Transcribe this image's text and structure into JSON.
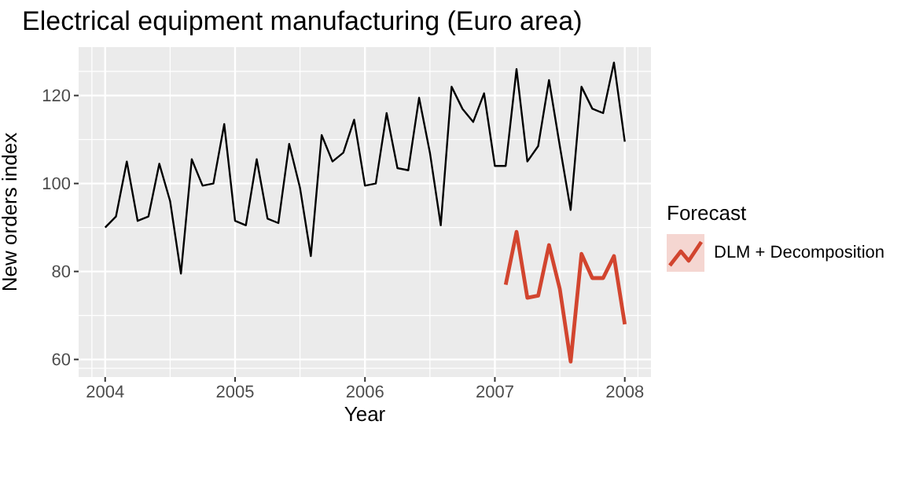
{
  "chart_data": {
    "type": "line",
    "title": "Electrical equipment manufacturing (Euro area)",
    "xlabel": "Year",
    "ylabel": "New orders index",
    "legend_title": "Forecast",
    "legend": "right",
    "grid": true,
    "xlim": [
      "2003-10-18",
      "2008-03-14"
    ],
    "xticks": [
      "2004",
      "2005",
      "2006",
      "2007",
      "2008"
    ],
    "ylim": [
      56,
      131
    ],
    "yticks": [
      60,
      80,
      100,
      120
    ],
    "series": [
      {
        "color": "#000000",
        "x": [
          "2004-01",
          "2004-02",
          "2004-03",
          "2004-04",
          "2004-05",
          "2004-06",
          "2004-07",
          "2004-08",
          "2004-09",
          "2004-10",
          "2004-11",
          "2004-12",
          "2005-01",
          "2005-02",
          "2005-03",
          "2005-04",
          "2005-05",
          "2005-06",
          "2005-07",
          "2005-08",
          "2005-09",
          "2005-10",
          "2005-11",
          "2005-12",
          "2006-01",
          "2006-02",
          "2006-03",
          "2006-04",
          "2006-05",
          "2006-06",
          "2006-07",
          "2006-08",
          "2006-09",
          "2006-10",
          "2006-11",
          "2006-12",
          "2007-01",
          "2007-02",
          "2007-03",
          "2007-04",
          "2007-05",
          "2007-06",
          "2007-07",
          "2007-08",
          "2007-09",
          "2007-10",
          "2007-11",
          "2007-12",
          "2008-01"
        ],
        "values": [
          90,
          92.5,
          105,
          91.5,
          92.5,
          104.5,
          96,
          79.5,
          105.5,
          99.5,
          100,
          113.5,
          91.5,
          90.5,
          105.5,
          92,
          91,
          109,
          99,
          83.5,
          111,
          105,
          107,
          114.5,
          99.5,
          100,
          116,
          103.5,
          103,
          119.5,
          107,
          90.5,
          122,
          117,
          114,
          120.5,
          104,
          104,
          126,
          105,
          108.5,
          123.5,
          108.5,
          94,
          122,
          117,
          116,
          127.5,
          109.5
        ]
      },
      {
        "name": "DLM + Decomposition",
        "color": "#d2452f",
        "x": [
          "2007-02",
          "2007-03",
          "2007-04",
          "2007-05",
          "2007-06",
          "2007-07",
          "2007-08",
          "2007-09",
          "2007-10",
          "2007-11",
          "2007-12",
          "2008-01"
        ],
        "values": [
          77,
          89,
          74,
          74.5,
          86,
          76,
          59.5,
          84,
          78.5,
          78.5,
          83.5,
          68
        ]
      }
    ]
  }
}
